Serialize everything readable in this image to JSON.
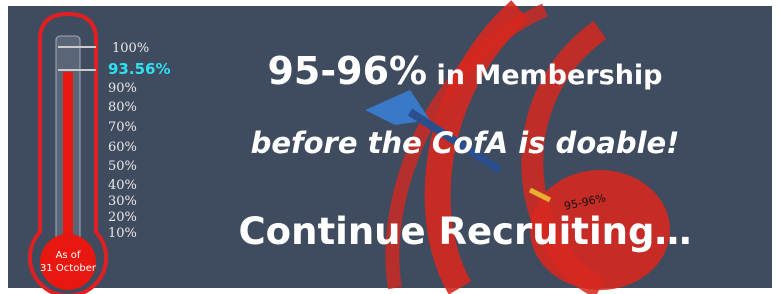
{
  "thermometer": {
    "level_label": "93.56%",
    "scale": [
      "100%",
      "90%",
      "80%",
      "70%",
      "60%",
      "50%",
      "40%",
      "30%",
      "20%",
      "10%"
    ],
    "bulb_text": [
      "As of",
      "31 October"
    ]
  },
  "headline": {
    "target": "95-96%",
    "target_suffix": " in Membership",
    "line2": "before the CofA is doable!",
    "line3": "Continue Recruiting…"
  },
  "dart_label": "95-96%"
}
